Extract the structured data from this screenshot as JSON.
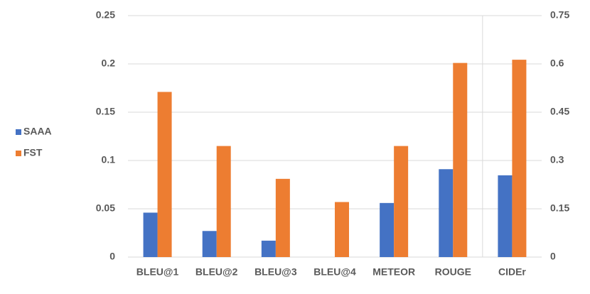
{
  "chart_data": {
    "type": "bar",
    "categories": [
      "BLEU@1",
      "BLEU@2",
      "BLEU@3",
      "BLEU@4",
      "METEOR",
      "ROUGE",
      "CIDEr"
    ],
    "category_axis": [
      "y",
      "y",
      "y",
      "y",
      "y",
      "y",
      "y2"
    ],
    "series": [
      {
        "name": "SAAA",
        "color": "#4472c4",
        "values": [
          0.046,
          0.027,
          0.017,
          0,
          0.056,
          0.091,
          0.254
        ]
      },
      {
        "name": "FST",
        "color": "#ed7d31",
        "values": [
          0.171,
          0.115,
          0.081,
          0.057,
          0.115,
          0.201,
          0.613
        ]
      }
    ],
    "ylim": [
      0,
      0.25
    ],
    "yticks": [
      0,
      0.05,
      0.1,
      0.15,
      0.2,
      0.25
    ],
    "y2lim": [
      0,
      0.75
    ],
    "y2ticks": [
      0,
      0.15,
      0.3,
      0.45,
      0.6,
      0.75
    ],
    "grid": true,
    "legend": "left"
  }
}
